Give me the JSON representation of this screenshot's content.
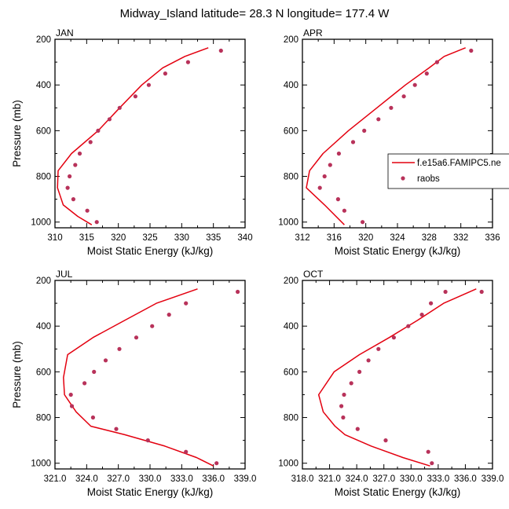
{
  "title": "Midway_Island  latitude= 28.3 N longitude= 177.4 W",
  "chart_data": [
    {
      "type": "line",
      "title": "JAN",
      "xlabel": "Moist Static Energy (kJ/kg)",
      "ylabel": "Pressure (mb)",
      "xlim": [
        310,
        340
      ],
      "ylim": [
        1025,
        200
      ],
      "xticks": [
        310,
        315,
        320,
        325,
        330,
        335,
        340
      ],
      "xticklabels": [
        "310",
        "315",
        "320",
        "325",
        "330",
        "335",
        "340"
      ],
      "yticks": [
        200,
        400,
        600,
        800,
        1000
      ],
      "yticklabels": [
        "200",
        "400",
        "600",
        "800",
        "1000"
      ],
      "series": [
        {
          "name": "f.e15a6.FAMIPC5.ne",
          "kind": "line",
          "color": "#e3000f",
          "x": [
            315.8,
            313.6,
            311.3,
            310.4,
            310.5,
            312.6,
            316.8,
            320.2,
            323.7,
            327.0,
            330.5,
            334.2
          ],
          "y": [
            1012,
            975,
            925,
            850,
            775,
            700,
            600,
            500,
            400,
            325,
            275,
            237
          ]
        },
        {
          "name": "raobs",
          "kind": "marker",
          "color": "#b8325a",
          "x": [
            316.6,
            315.1,
            312.9,
            312.0,
            312.3,
            313.2,
            313.9,
            315.6,
            316.8,
            318.6,
            320.2,
            322.7,
            324.8,
            327.4,
            331.0,
            336.2
          ],
          "y": [
            1000,
            950,
            900,
            850,
            800,
            750,
            700,
            650,
            600,
            550,
            500,
            450,
            400,
            350,
            300,
            250
          ]
        }
      ]
    },
    {
      "type": "line",
      "title": "APR",
      "xlabel": "Moist Static Energy (kJ/kg)",
      "ylabel": "",
      "xlim": [
        312,
        336
      ],
      "ylim": [
        1025,
        200
      ],
      "xticks": [
        312,
        316,
        320,
        324,
        328,
        332,
        336
      ],
      "xticklabels": [
        "312",
        "316",
        "320",
        "324",
        "328",
        "332",
        "336"
      ],
      "yticks": [
        200,
        400,
        600,
        800,
        1000
      ],
      "yticklabels": [
        "200",
        "400",
        "600",
        "800",
        "1000"
      ],
      "series": [
        {
          "name": "f.e15a6.FAMIPC5.ne",
          "kind": "line",
          "color": "#e3000f",
          "x": [
            317.3,
            314.8,
            312.5,
            312.9,
            314.6,
            317.8,
            321.4,
            325.0,
            328.0,
            329.9,
            332.6
          ],
          "y": [
            1012,
            925,
            850,
            775,
            700,
            600,
            500,
            400,
            325,
            275,
            237
          ]
        },
        {
          "name": "raobs",
          "kind": "marker",
          "color": "#b8325a",
          "x": [
            319.6,
            317.3,
            316.5,
            314.2,
            314.8,
            315.5,
            316.6,
            318.4,
            319.8,
            321.6,
            323.2,
            324.8,
            326.2,
            327.7,
            329.0,
            333.3
          ],
          "y": [
            1000,
            950,
            900,
            850,
            800,
            750,
            700,
            650,
            600,
            550,
            500,
            450,
            400,
            350,
            300,
            250
          ]
        }
      ]
    },
    {
      "type": "line",
      "title": "JUL",
      "xlabel": "Moist Static Energy (kJ/kg)",
      "ylabel": "Pressure (mb)",
      "xlim": [
        321,
        339
      ],
      "ylim": [
        1025,
        200
      ],
      "xticks": [
        321,
        324,
        327,
        330,
        333,
        336,
        339
      ],
      "xticklabels": [
        "321.0",
        "324.0",
        "327.0",
        "330.0",
        "333.0",
        "336.0",
        "339.0"
      ],
      "yticks": [
        200,
        400,
        600,
        800,
        1000
      ],
      "yticklabels": [
        "200",
        "400",
        "600",
        "800",
        "1000"
      ],
      "series": [
        {
          "name": "f.e15a6.FAMIPC5.ne",
          "kind": "line",
          "color": "#e3000f",
          "x": [
            336.0,
            334.4,
            331.4,
            327.6,
            324.4,
            323.0,
            321.9,
            321.8,
            322.2,
            324.6,
            327.6,
            330.6,
            334.5
          ],
          "y": [
            1012,
            975,
            925,
            875,
            838,
            775,
            700,
            625,
            525,
            450,
            375,
            300,
            237
          ]
        },
        {
          "name": "raobs",
          "kind": "marker",
          "color": "#b8325a",
          "x": [
            336.3,
            333.4,
            329.8,
            326.8,
            324.6,
            322.6,
            322.5,
            323.8,
            324.7,
            325.8,
            327.1,
            328.7,
            330.2,
            331.8,
            333.4,
            338.3
          ],
          "y": [
            1000,
            950,
            900,
            850,
            800,
            750,
            700,
            650,
            600,
            550,
            500,
            450,
            400,
            350,
            300,
            250
          ]
        }
      ]
    },
    {
      "type": "line",
      "title": "OCT",
      "xlabel": "Moist Static Energy (kJ/kg)",
      "ylabel": "",
      "xlim": [
        318,
        339
      ],
      "ylim": [
        1025,
        200
      ],
      "xticks": [
        318,
        321,
        324,
        327,
        330,
        333,
        336,
        339
      ],
      "xticklabels": [
        "318.0",
        "321.0",
        "324.0",
        "327.0",
        "330.0",
        "333.0",
        "336.0",
        "339.0"
      ],
      "yticks": [
        200,
        400,
        600,
        800,
        1000
      ],
      "yticklabels": [
        "200",
        "400",
        "600",
        "800",
        "1000"
      ],
      "series": [
        {
          "name": "f.e15a6.FAMIPC5.ne",
          "kind": "line",
          "color": "#e3000f",
          "x": [
            332.1,
            329.1,
            325.6,
            322.7,
            321.6,
            320.3,
            319.8,
            321.5,
            324.3,
            327.6,
            330.7,
            333.6,
            337.2
          ],
          "y": [
            1012,
            975,
            925,
            875,
            838,
            775,
            700,
            600,
            525,
            450,
            375,
            300,
            237
          ]
        },
        {
          "name": "raobs",
          "kind": "marker",
          "color": "#b8325a",
          "x": [
            332.3,
            331.9,
            327.2,
            324.1,
            322.5,
            322.3,
            322.6,
            323.4,
            324.3,
            325.3,
            326.4,
            328.1,
            329.7,
            331.2,
            332.2,
            333.8,
            337.8
          ],
          "y": [
            1000,
            950,
            900,
            850,
            800,
            750,
            700,
            650,
            600,
            550,
            500,
            450,
            400,
            350,
            300,
            250,
            250
          ]
        }
      ]
    }
  ],
  "legend": {
    "placement": "right of APR panel",
    "entries": [
      {
        "label": "f.e15a6.FAMIPC5.ne",
        "kind": "line"
      },
      {
        "label": "raobs",
        "kind": "marker"
      }
    ]
  }
}
